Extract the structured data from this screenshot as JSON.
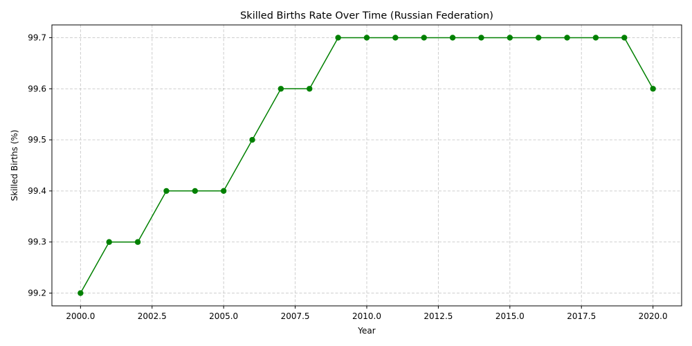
{
  "chart_data": {
    "type": "line",
    "title": "Skilled Births Rate Over Time (Russian Federation)",
    "xlabel": "Year",
    "ylabel": "Skilled Births (%)",
    "x": [
      2000,
      2001,
      2002,
      2003,
      2004,
      2005,
      2006,
      2007,
      2008,
      2009,
      2010,
      2011,
      2012,
      2013,
      2014,
      2015,
      2016,
      2017,
      2018,
      2019,
      2020
    ],
    "series": [
      {
        "name": "Skilled Births (%)",
        "color": "#008000",
        "values": [
          99.2,
          99.3,
          99.3,
          99.4,
          99.4,
          99.4,
          99.5,
          99.6,
          99.6,
          99.7,
          99.7,
          99.7,
          99.7,
          99.7,
          99.7,
          99.7,
          99.7,
          99.7,
          99.7,
          99.7,
          99.6
        ]
      }
    ],
    "xlim": [
      1999,
      2021
    ],
    "ylim": [
      99.175,
      99.725
    ],
    "xticks": [
      "2000.0",
      "2002.5",
      "2005.0",
      "2007.5",
      "2010.0",
      "2012.5",
      "2015.0",
      "2017.5",
      "2020.0"
    ],
    "xtick_values": [
      2000,
      2002.5,
      2005,
      2007.5,
      2010,
      2012.5,
      2015,
      2017.5,
      2020
    ],
    "yticks": [
      "99.2",
      "99.3",
      "99.4",
      "99.5",
      "99.6",
      "99.7"
    ],
    "ytick_values": [
      99.2,
      99.3,
      99.4,
      99.5,
      99.6,
      99.7
    ],
    "grid": true,
    "marker": "circle"
  }
}
